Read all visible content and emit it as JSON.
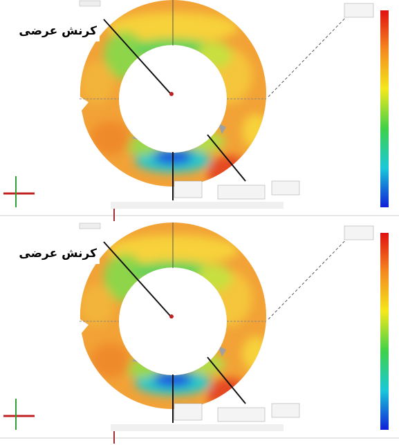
{
  "panels": [
    {
      "label": "کرنش عرضی"
    },
    {
      "label": "کرنش عرضی"
    }
  ]
}
